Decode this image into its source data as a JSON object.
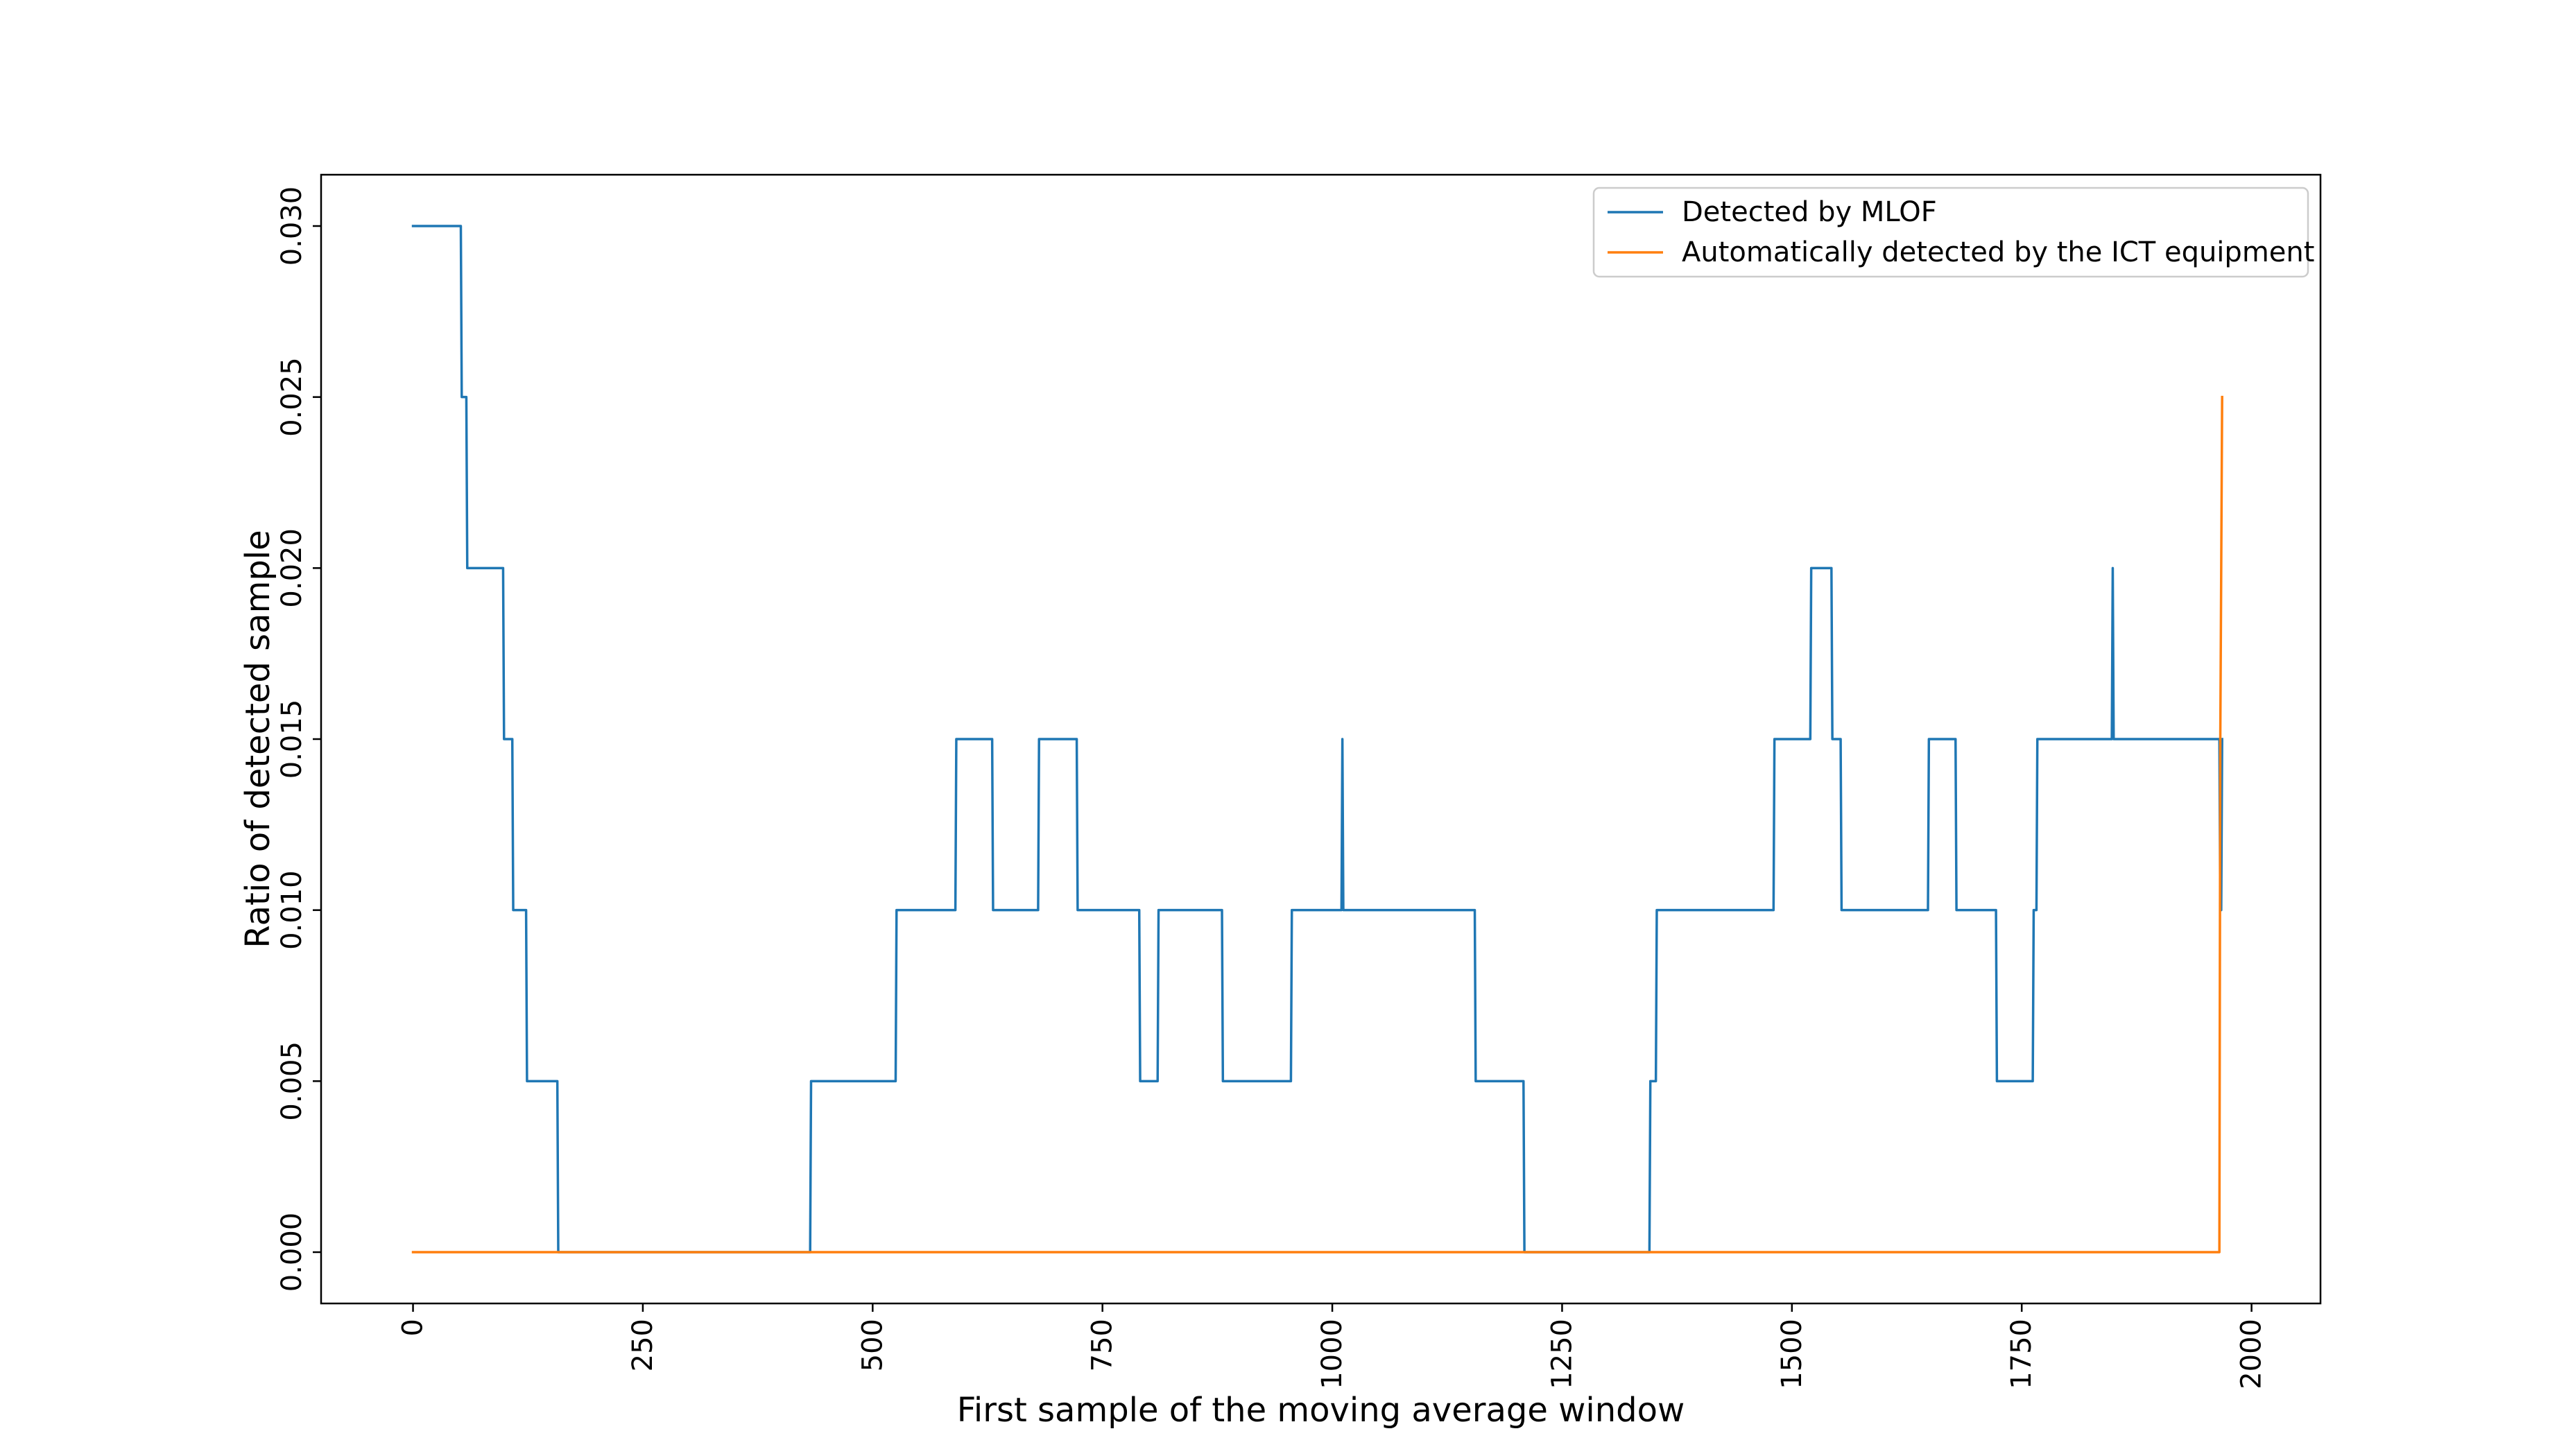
{
  "chart_data": {
    "type": "line",
    "title": "",
    "xlabel": "First sample of the moving average window",
    "ylabel": "Ratio of detected sample",
    "xlim": [
      -100,
      2075
    ],
    "ylim": [
      -0.0015,
      0.0315
    ],
    "x_ticks": [
      0,
      250,
      500,
      750,
      1000,
      1250,
      1500,
      1750,
      2000
    ],
    "x_tick_labels": [
      "0",
      "250",
      "500",
      "750",
      "1000",
      "1250",
      "1500",
      "1750",
      "2000"
    ],
    "y_ticks": [
      0.0,
      0.005,
      0.01,
      0.015,
      0.02,
      0.025,
      0.03
    ],
    "y_tick_labels": [
      "0.000",
      "0.005",
      "0.010",
      "0.015",
      "0.020",
      "0.025",
      "0.030"
    ],
    "grid": false,
    "legend_position": "top-right",
    "series": [
      {
        "name": "Detected by MLOF",
        "color": "#1f77b4",
        "points": [
          [
            0,
            0.03
          ],
          [
            52,
            0.03
          ],
          [
            53,
            0.025
          ],
          [
            58,
            0.025
          ],
          [
            59,
            0.02
          ],
          [
            98,
            0.02
          ],
          [
            99,
            0.015
          ],
          [
            108,
            0.015
          ],
          [
            109,
            0.01
          ],
          [
            123,
            0.01
          ],
          [
            124,
            0.005
          ],
          [
            157,
            0.005
          ],
          [
            158,
            0.0
          ],
          [
            432,
            0.0
          ],
          [
            433,
            0.005
          ],
          [
            525,
            0.005
          ],
          [
            526,
            0.01
          ],
          [
            590,
            0.01
          ],
          [
            591,
            0.015
          ],
          [
            630,
            0.015
          ],
          [
            631,
            0.01
          ],
          [
            680,
            0.01
          ],
          [
            681,
            0.015
          ],
          [
            722,
            0.015
          ],
          [
            723,
            0.01
          ],
          [
            790,
            0.01
          ],
          [
            791,
            0.005
          ],
          [
            810,
            0.005
          ],
          [
            811,
            0.01
          ],
          [
            880,
            0.01
          ],
          [
            881,
            0.005
          ],
          [
            955,
            0.005
          ],
          [
            956,
            0.01
          ],
          [
            1010,
            0.01
          ],
          [
            1011,
            0.015
          ],
          [
            1012,
            0.01
          ],
          [
            1155,
            0.01
          ],
          [
            1156,
            0.005
          ],
          [
            1208,
            0.005
          ],
          [
            1209,
            0.0
          ],
          [
            1345,
            0.0
          ],
          [
            1346,
            0.005
          ],
          [
            1352,
            0.005
          ],
          [
            1353,
            0.01
          ],
          [
            1480,
            0.01
          ],
          [
            1481,
            0.015
          ],
          [
            1520,
            0.015
          ],
          [
            1521,
            0.02
          ],
          [
            1543,
            0.02
          ],
          [
            1544,
            0.015
          ],
          [
            1553,
            0.015
          ],
          [
            1554,
            0.01
          ],
          [
            1648,
            0.01
          ],
          [
            1649,
            0.015
          ],
          [
            1678,
            0.015
          ],
          [
            1679,
            0.01
          ],
          [
            1722,
            0.01
          ],
          [
            1723,
            0.005
          ],
          [
            1762,
            0.005
          ],
          [
            1763,
            0.01
          ],
          [
            1766,
            0.01
          ],
          [
            1767,
            0.015
          ],
          [
            1848,
            0.015
          ],
          [
            1849,
            0.02
          ],
          [
            1850,
            0.015
          ],
          [
            1965,
            0.015
          ],
          [
            1966,
            0.01
          ],
          [
            1967,
            0.01
          ],
          [
            1968,
            0.015
          ]
        ]
      },
      {
        "name": "Automatically detected by the ICT equipment",
        "color": "#ff7f0e",
        "points": [
          [
            0,
            0.0
          ],
          [
            1965,
            0.0
          ],
          [
            1966,
            0.015
          ],
          [
            1968,
            0.025
          ]
        ]
      }
    ]
  }
}
